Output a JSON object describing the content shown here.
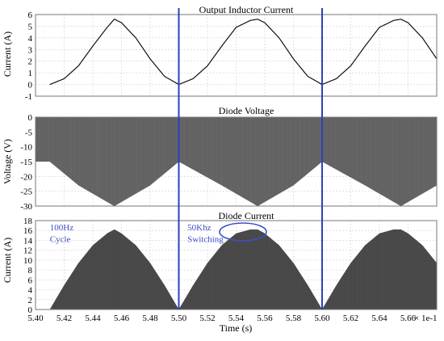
{
  "chart_data": [
    {
      "type": "line",
      "title": "Output Inductor Current",
      "ylabel": "Current (A)",
      "xlabel": "",
      "xlim": [
        0.54,
        0.568
      ],
      "ylim": [
        -1,
        6
      ],
      "yticks": [
        -1,
        0,
        1,
        2,
        3,
        4,
        5,
        6
      ],
      "grid": true,
      "series": [
        {
          "description": "rectified half-sine of inductor current, peak 5.6 A, period 0.01 s (100 Hz)",
          "x": [
            0.541,
            0.542,
            0.543,
            0.544,
            0.545,
            0.5455,
            0.546,
            0.547,
            0.548,
            0.549,
            0.55,
            0.551,
            0.552,
            0.553,
            0.554,
            0.555,
            0.5555,
            0.556,
            0.557,
            0.558,
            0.559,
            0.56,
            0.561,
            0.562,
            0.563,
            0.564,
            0.565,
            0.5655,
            0.566,
            0.567,
            0.568
          ],
          "y": [
            0.0,
            0.5,
            1.6,
            3.3,
            4.9,
            5.6,
            5.3,
            4.0,
            2.2,
            0.7,
            0.0,
            0.5,
            1.6,
            3.3,
            4.9,
            5.5,
            5.6,
            5.3,
            4.0,
            2.2,
            0.7,
            0.0,
            0.5,
            1.6,
            3.3,
            4.9,
            5.5,
            5.6,
            5.3,
            4.0,
            2.2
          ]
        }
      ]
    },
    {
      "type": "area",
      "title": "Diode Voltage",
      "ylabel": "Voltage (V)",
      "xlabel": "",
      "xlim": [
        0.54,
        0.568
      ],
      "ylim": [
        -30,
        0
      ],
      "yticks": [
        0,
        -5,
        -10,
        -15,
        -20,
        -25,
        -30
      ],
      "grid": true,
      "series": [
        {
          "description": "50 kHz switching between 0 V and a negative envelope (-15 V at the zero-crossings, -30 V at the peaks)",
          "upper": 0,
          "envelope_x": [
            0.54,
            0.541,
            0.543,
            0.5455,
            0.548,
            0.55,
            0.553,
            0.5555,
            0.558,
            0.56,
            0.563,
            0.5655,
            0.568
          ],
          "envelope_y": [
            -15,
            -15,
            -23,
            -30,
            -23,
            -15,
            -23,
            -30,
            -23,
            -15,
            -23,
            -30,
            -23
          ]
        }
      ]
    },
    {
      "type": "area",
      "title": "Diode Current",
      "ylabel": "Current (A)",
      "xlabel": "Time (s)",
      "xlim": [
        0.54,
        0.568
      ],
      "ylim": [
        0,
        18
      ],
      "xtick_labels": [
        "5.40",
        "5.42",
        "5.44",
        "5.46",
        "5.48",
        "5.50",
        "5.52",
        "5.54",
        "5.56",
        "5.58",
        "5.60",
        "5.62",
        "5.64",
        "5.66"
      ],
      "x_multiplier": "× 1e-1",
      "yticks": [
        0,
        2,
        4,
        6,
        8,
        10,
        12,
        14,
        16,
        18
      ],
      "grid": true,
      "series": [
        {
          "description": "50 kHz current pulses with half-sine envelope peaking near 16 A",
          "envelope_x": [
            0.541,
            0.542,
            0.543,
            0.544,
            0.545,
            0.5455,
            0.546,
            0.547,
            0.548,
            0.549,
            0.55,
            0.551,
            0.552,
            0.553,
            0.554,
            0.555,
            0.5555,
            0.556,
            0.557,
            0.558,
            0.559,
            0.56,
            0.561,
            0.562,
            0.563,
            0.564,
            0.565,
            0.5655,
            0.566,
            0.567,
            0.568
          ],
          "envelope_y": [
            0.0,
            4.9,
            9.4,
            13.0,
            15.4,
            16.2,
            15.4,
            13.0,
            9.4,
            4.9,
            0.0,
            4.9,
            9.4,
            13.0,
            15.4,
            16.2,
            16.2,
            15.4,
            13.0,
            9.4,
            4.9,
            0.0,
            4.9,
            9.4,
            13.0,
            15.4,
            16.2,
            16.2,
            15.4,
            13.0,
            9.4
          ]
        }
      ],
      "annotations": [
        {
          "text": "100Hz",
          "x": 0.541,
          "y": 16.0
        },
        {
          "text": "Cycle",
          "x": 0.541,
          "y": 13.7
        },
        {
          "text": "50Khz",
          "x": 0.5506,
          "y": 16.0
        },
        {
          "text": "Switching",
          "x": 0.5506,
          "y": 13.7
        }
      ]
    }
  ],
  "markers": {
    "x": [
      0.55,
      0.56
    ]
  },
  "colors": {
    "trace": "#111111",
    "marker": "#2e3fbf",
    "annotation_text": "#3d4fc4",
    "grid": "#cfcfcf"
  }
}
